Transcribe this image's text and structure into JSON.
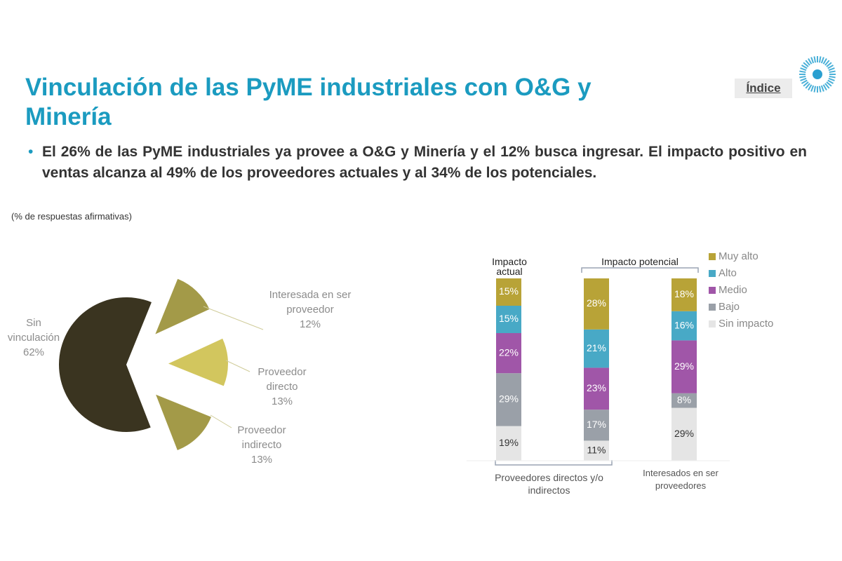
{
  "header": {
    "title": "Vinculación de las PyME industriales con O&G y Minería",
    "bullet": "El 26% de las PyME industriales ya provee a O&G y Minería y el 12% busca ingresar. El impacto positivo en ventas alcanza al 49% de los proveedores actuales y al 34% de los potenciales.",
    "note": "(% de respuestas afirmativas)",
    "index_link": "Índice"
  },
  "chart_data": [
    {
      "type": "pie",
      "categories": [
        "Interesada en ser proveedor",
        "Proveedor directo",
        "Proveedor indirecto",
        "Sin vinculación"
      ],
      "values": [
        12,
        13,
        13,
        62
      ],
      "value_labels": [
        "12%",
        "13%",
        "13%",
        "62%"
      ],
      "colors": [
        "#a39a48",
        "#d2c65e",
        "#a39a48",
        "#3a3420"
      ]
    },
    {
      "type": "bar",
      "stacked": true,
      "categories": [
        null,
        null,
        null
      ],
      "group_labels": {
        "top": [
          "Impacto actual",
          "Impacto potencial"
        ],
        "bottom": [
          "Proveedores directos y/o indirectos",
          "Interesados en ser proveedores"
        ]
      },
      "series": [
        {
          "name": "Sin impacto",
          "color": "#e5e5e5",
          "values": [
            19,
            11,
            29
          ],
          "value_labels": [
            "19%",
            "11%",
            "29%"
          ]
        },
        {
          "name": "Bajo",
          "color": "#9aa0a8",
          "values": [
            29,
            17,
            8
          ],
          "value_labels": [
            "29%",
            "17%",
            "8%"
          ]
        },
        {
          "name": "Medio",
          "color": "#a056a8",
          "values": [
            22,
            23,
            29
          ],
          "value_labels": [
            "22%",
            "23%",
            "29%"
          ]
        },
        {
          "name": "Alto",
          "color": "#48a9c6",
          "values": [
            15,
            21,
            16
          ],
          "value_labels": [
            "15%",
            "21%",
            "16%"
          ]
        },
        {
          "name": "Muy alto",
          "color": "#b8a337",
          "values": [
            15,
            28,
            18
          ],
          "value_labels": [
            "15%",
            "28%",
            "18%"
          ]
        }
      ]
    }
  ]
}
